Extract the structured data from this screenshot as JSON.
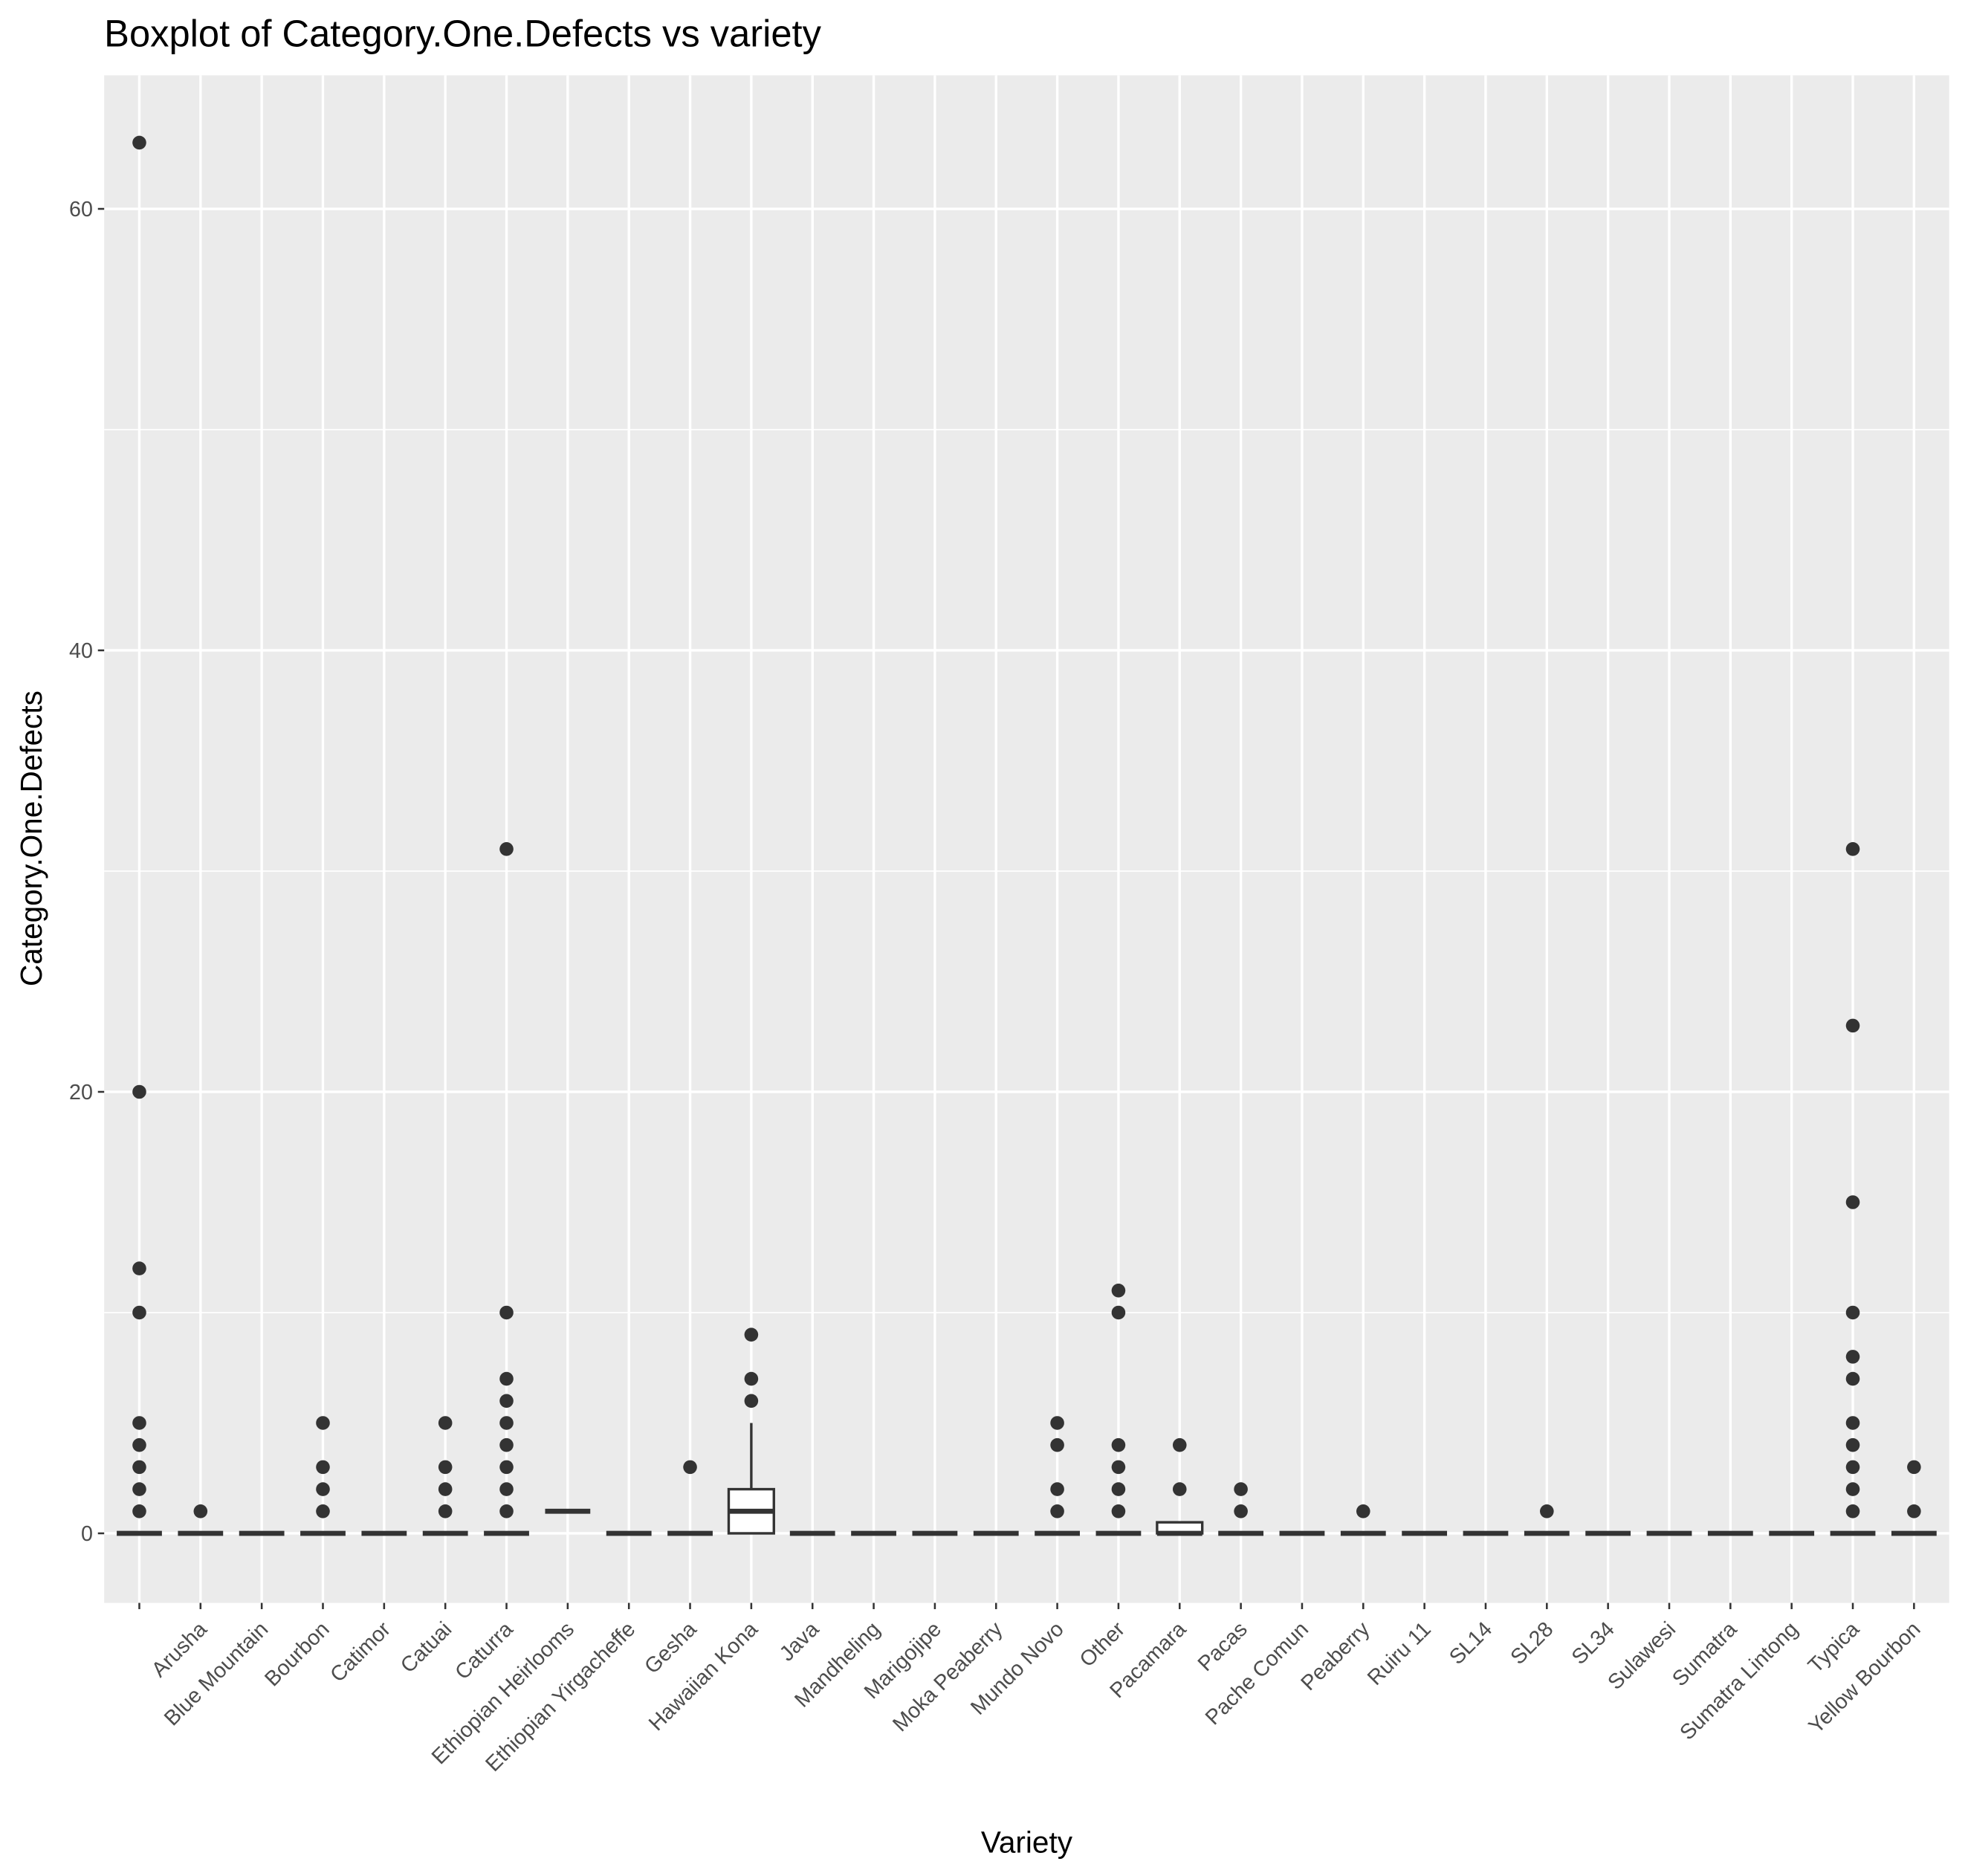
{
  "chart_data": {
    "type": "boxplot",
    "title": "Boxplot of Category.One.Defects vs variety",
    "x_label": "Variety",
    "y_label": "Category.One.Defects",
    "categories": [
      null,
      "Arusha",
      "Blue Mountain",
      "Bourbon",
      "Catimor",
      "Catuai",
      "Caturra",
      "Ethiopian Heirlooms",
      "Ethiopian Yirgacheffe",
      "Gesha",
      "Hawaiian Kona",
      "Java",
      "Mandheling",
      "Marigojipe",
      "Moka Peaberry",
      "Mundo Novo",
      "Other",
      "Pacamara",
      "Pacas",
      "Pache Comun",
      "Peaberry",
      "Ruiru 11",
      "SL14",
      "SL28",
      "SL34",
      "Sulawesi",
      "Sumatra",
      "Sumatra Lintong",
      "Typica",
      "Yellow Bourbon"
    ],
    "whisker_low": [
      0,
      0,
      0,
      0,
      0,
      0,
      0,
      1,
      0,
      0,
      0,
      0,
      0,
      0,
      0,
      0,
      0,
      0,
      0,
      0,
      0,
      0,
      0,
      0,
      0,
      0,
      0,
      0,
      0,
      0
    ],
    "q1": [
      0,
      0,
      0,
      0,
      0,
      0,
      0,
      1,
      0,
      0,
      0,
      0,
      0,
      0,
      0,
      0,
      0,
      0,
      0,
      0,
      0,
      0,
      0,
      0,
      0,
      0,
      0,
      0,
      0,
      0
    ],
    "median": [
      0,
      0,
      0,
      0,
      0,
      0,
      0,
      1,
      0,
      0,
      1,
      0,
      0,
      0,
      0,
      0,
      0,
      0,
      0,
      0,
      0,
      0,
      0,
      0,
      0,
      0,
      0,
      0,
      0,
      0
    ],
    "q3": [
      0,
      0,
      0,
      0,
      0,
      0,
      0,
      1,
      0,
      0,
      2,
      0,
      0,
      0,
      0,
      0,
      0,
      0.5,
      0,
      0,
      0,
      0,
      0,
      0,
      0,
      0,
      0,
      0,
      0,
      0
    ],
    "whisker_high": [
      0,
      0,
      0,
      0,
      0,
      0,
      0,
      1,
      0,
      0,
      5,
      0,
      0,
      0,
      0,
      0,
      0,
      0.5,
      0,
      0,
      0,
      0,
      0,
      0,
      0,
      0,
      0,
      0,
      0,
      0
    ],
    "outliers": [
      [
        63,
        20,
        12,
        10,
        5,
        4,
        3,
        2,
        1
      ],
      [
        1
      ],
      [],
      [
        5,
        3,
        2,
        1
      ],
      [],
      [
        5,
        3,
        2,
        1
      ],
      [
        31,
        10,
        7,
        6,
        5,
        4,
        3,
        2,
        1
      ],
      [],
      [],
      [
        3
      ],
      [
        9,
        7,
        6
      ],
      [],
      [],
      [],
      [],
      [
        5,
        4,
        2,
        1
      ],
      [
        11,
        10,
        4,
        3,
        2,
        1
      ],
      [
        4,
        2
      ],
      [
        2,
        1
      ],
      [],
      [
        1
      ],
      [],
      [],
      [
        1
      ],
      [],
      [],
      [],
      [],
      [
        31,
        23,
        15,
        10,
        8,
        7,
        5,
        4,
        3,
        2,
        1
      ],
      [
        3,
        1
      ]
    ],
    "ylim": [
      -3.15,
      66.05
    ],
    "yticks": [
      0,
      20,
      40,
      60
    ],
    "minor_yticks": [
      10,
      30,
      50
    ],
    "grid": true,
    "color": "#333333",
    "box_fill": "#ffffff",
    "panel_color": "#ebebeb"
  }
}
